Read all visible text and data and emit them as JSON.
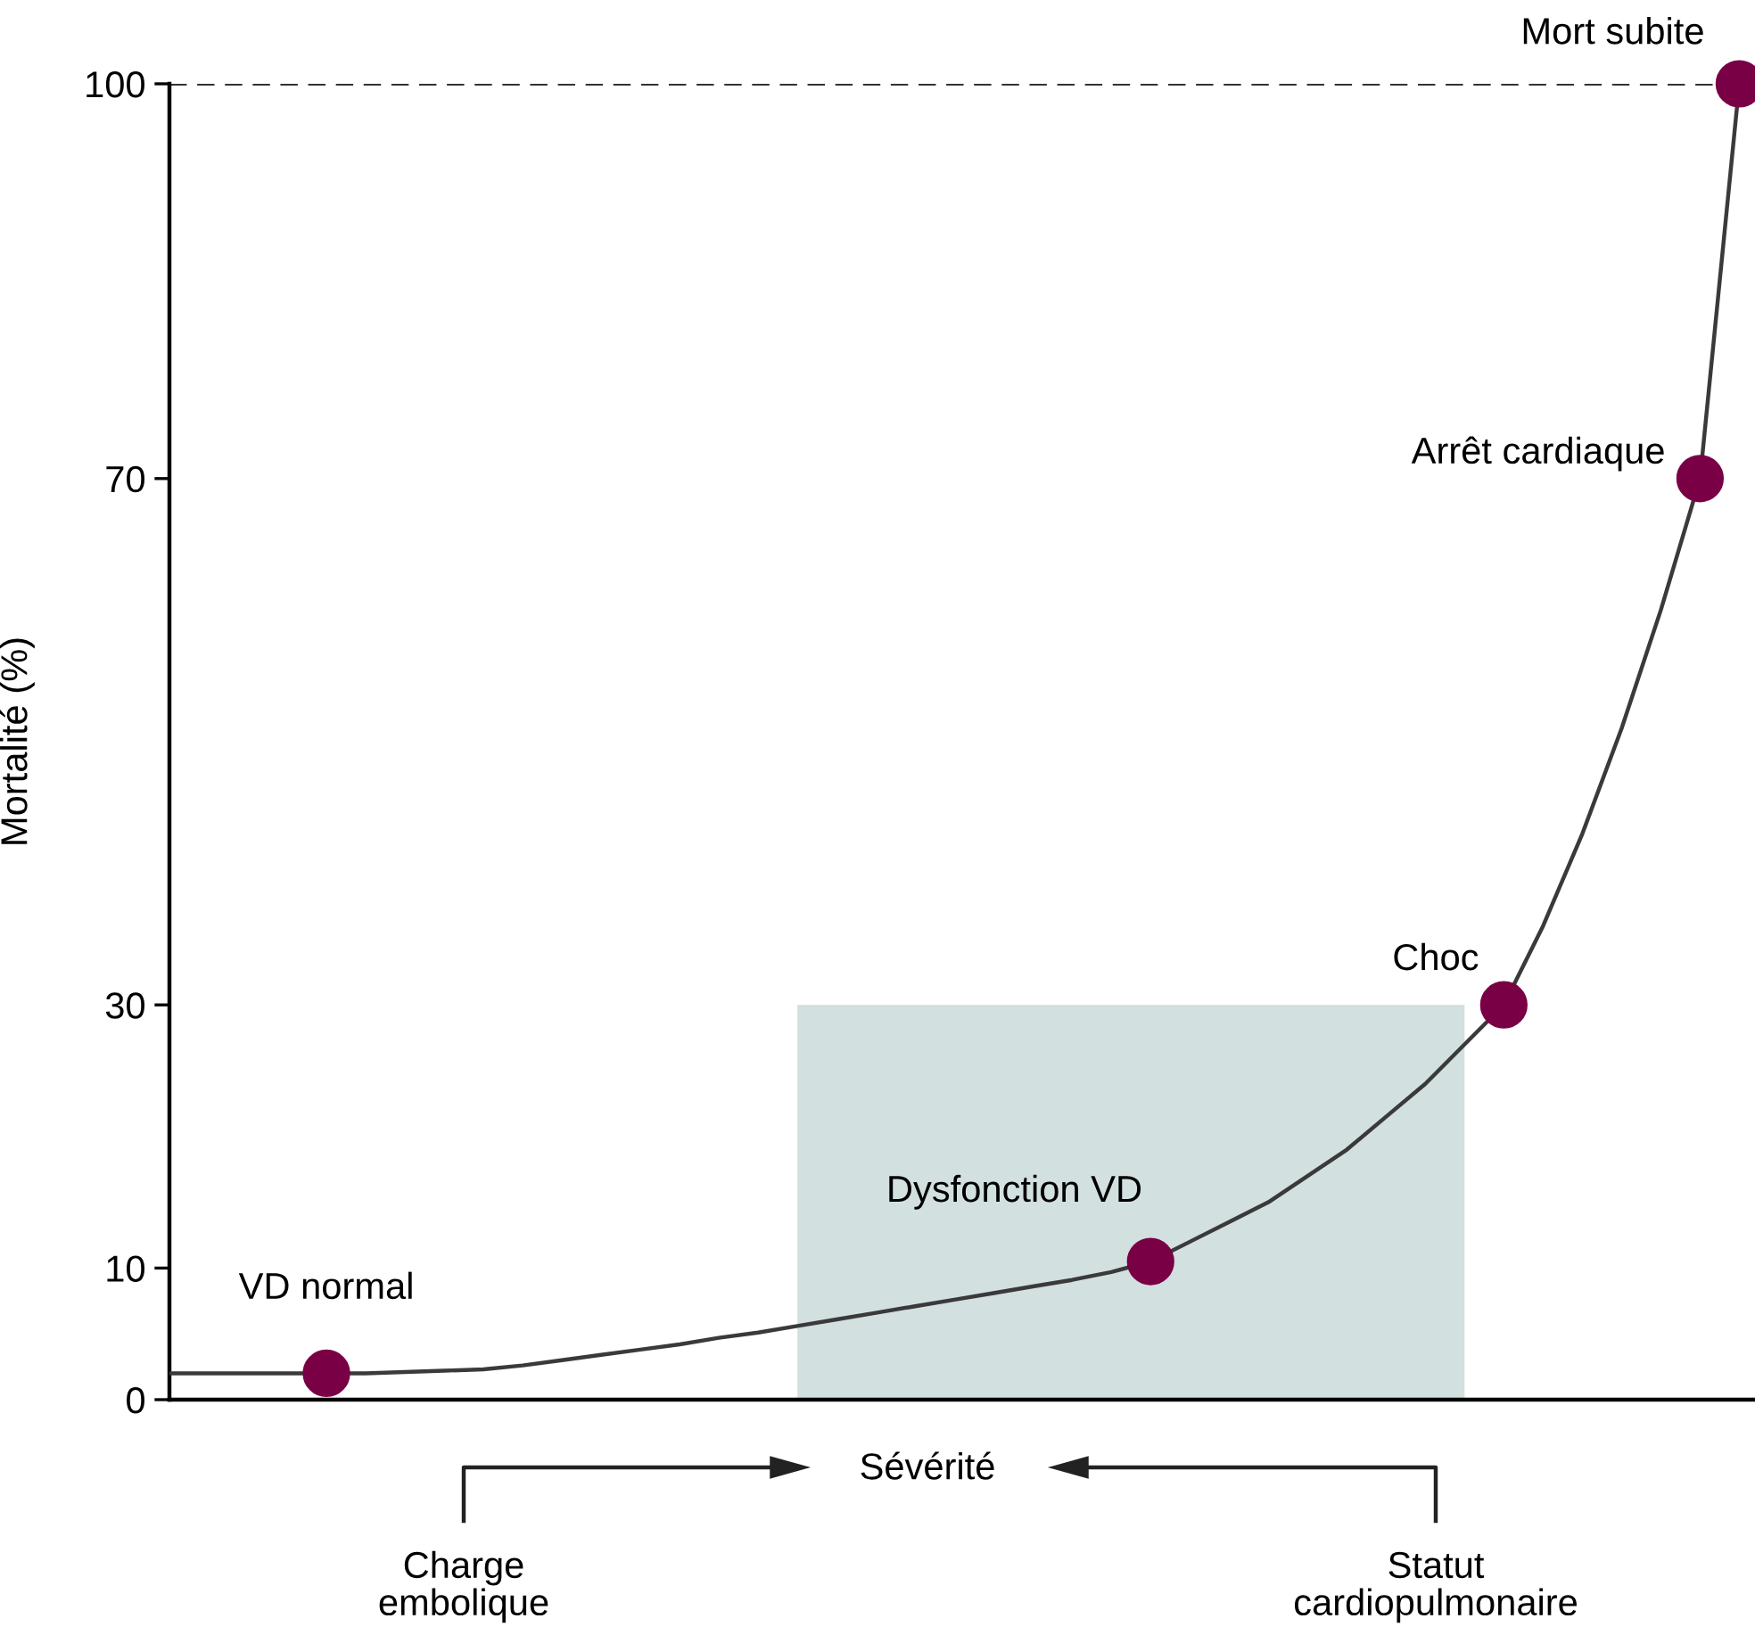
{
  "chart_data": {
    "type": "line",
    "ylabel": "Mortalité (%)",
    "xlabel": "Sévérité",
    "ylim": [
      0,
      100
    ],
    "yticks": [
      0,
      10,
      30,
      70,
      100
    ],
    "tick_labels": "y",
    "grid": false,
    "categories": [
      null,
      null,
      null,
      null,
      null,
      null,
      null,
      null,
      null,
      null,
      null,
      null,
      null,
      null,
      null,
      null,
      null,
      null,
      null,
      null,
      null,
      null,
      null,
      null,
      null,
      null,
      null,
      null,
      null,
      null,
      null,
      null,
      null,
      null,
      null,
      null,
      null,
      null,
      null,
      null,
      null
    ],
    "series": [
      {
        "type": "area",
        "color": "#d2e0df",
        "values": [
          null,
          null,
          null,
          null,
          null,
          null,
          null,
          null,
          null,
          null,
          null,
          null,
          null,
          null,
          null,
          null,
          30,
          30,
          30,
          30,
          30,
          30,
          30,
          30,
          30,
          30,
          30,
          30,
          30,
          30,
          30,
          30,
          30,
          30,
          null,
          null,
          null,
          null,
          null,
          null,
          null
        ]
      },
      {
        "color": "#3a3a3a",
        "marker": "none",
        "line_style": "solid",
        "values": [
          2,
          2,
          2,
          2,
          2,
          2,
          2.1,
          2.2,
          2.3,
          2.6,
          3,
          3.4,
          3.8,
          4.2,
          4.7,
          5.1,
          5.6,
          6.1,
          6.6,
          7.1,
          7.6,
          8.1,
          8.6,
          9.1,
          9.7,
          10.5,
          12,
          13.5,
          15,
          17,
          19,
          21.5,
          24,
          27,
          30,
          36,
          43,
          51,
          60,
          70,
          100
        ]
      },
      {
        "type": "scatter",
        "color": "#7a0046",
        "marker": "circle",
        "values": [
          null,
          null,
          null,
          null,
          2,
          null,
          null,
          null,
          null,
          null,
          null,
          null,
          null,
          null,
          null,
          null,
          null,
          null,
          null,
          null,
          null,
          null,
          null,
          null,
          null,
          10.5,
          null,
          null,
          null,
          null,
          null,
          null,
          null,
          null,
          30,
          null,
          null,
          null,
          null,
          70,
          100
        ],
        "value_labels": [
          null,
          null,
          null,
          null,
          "VD normal",
          null,
          null,
          null,
          null,
          null,
          null,
          null,
          null,
          null,
          null,
          null,
          null,
          null,
          null,
          null,
          null,
          null,
          null,
          null,
          null,
          "Dysfonction VD",
          null,
          null,
          null,
          null,
          null,
          null,
          null,
          null,
          "Choc",
          null,
          null,
          null,
          null,
          "Arrêt cardiaque",
          "Mort subite"
        ]
      }
    ],
    "ref_lines": [
      {
        "axis": "y",
        "value": 100,
        "color": "#333333",
        "line_style": "dashed"
      }
    ],
    "annotations": [
      "Charge\nembolique",
      "Statut\ncardiopulmonaire"
    ]
  }
}
